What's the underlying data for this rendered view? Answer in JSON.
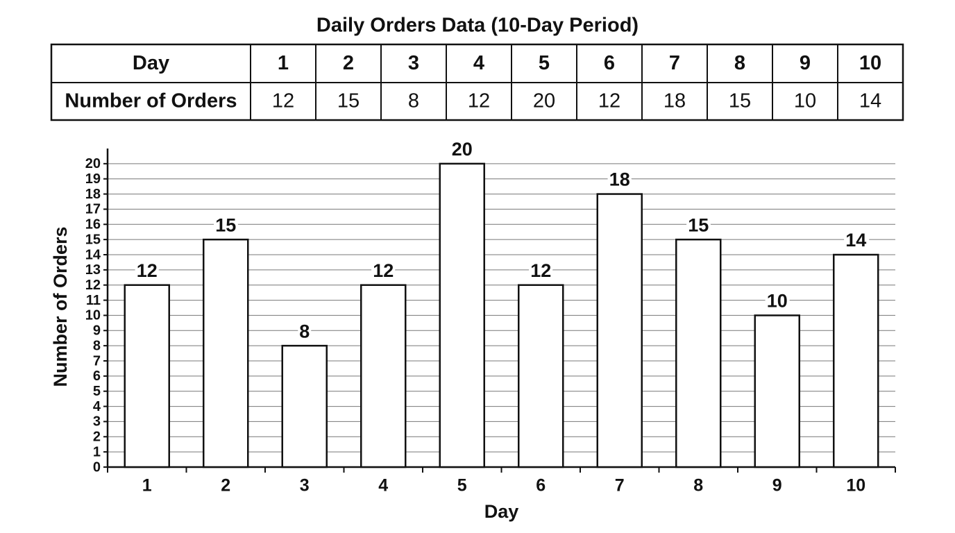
{
  "title": "Daily Orders Data (10-Day Period)",
  "table": {
    "rows": [
      [
        "Day",
        "1",
        "2",
        "3",
        "4",
        "5",
        "6",
        "7",
        "8",
        "9",
        "10"
      ],
      [
        "Number of Orders",
        12,
        15,
        8,
        12,
        20,
        12,
        18,
        15,
        10,
        14
      ]
    ]
  },
  "chart_data": {
    "type": "bar",
    "x_label": "Day",
    "y_label": "Number of Orders",
    "categories": [
      "1",
      "2",
      "3",
      "4",
      "5",
      "6",
      "7",
      "8",
      "9",
      "10"
    ],
    "values": [
      12,
      15,
      8,
      12,
      20,
      12,
      18,
      15,
      10,
      14
    ],
    "color": "#ffffff",
    "ylim": [
      0,
      21
    ],
    "yticks": [
      0,
      1,
      2,
      3,
      4,
      5,
      6,
      7,
      8,
      9,
      10,
      11,
      12,
      13,
      14,
      15,
      16,
      17,
      18,
      19,
      20
    ],
    "grid": true
  }
}
